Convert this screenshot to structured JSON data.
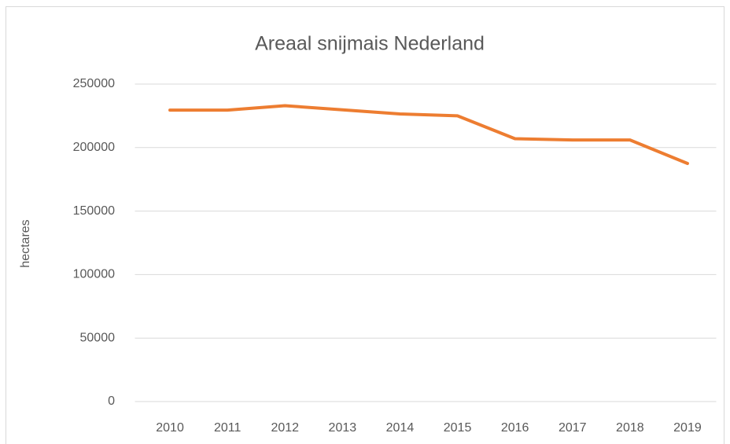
{
  "chart_data": {
    "type": "line",
    "title": "Areaal snijmais Nederland",
    "y_label": "hectares",
    "categories": [
      "2010",
      "2011",
      "2012",
      "2013",
      "2014",
      "2015",
      "2016",
      "2017",
      "2018",
      "2019"
    ],
    "series": [
      {
        "name": "Areaal snijmais",
        "color": "#ed7d31",
        "values": [
          229500,
          229500,
          233000,
          229700,
          226500,
          225000,
          207000,
          206000,
          206000,
          187500
        ]
      }
    ],
    "ylim": [
      0,
      250000
    ],
    "yticks": [
      0,
      50000,
      100000,
      150000,
      200000,
      250000
    ],
    "grid": true
  }
}
